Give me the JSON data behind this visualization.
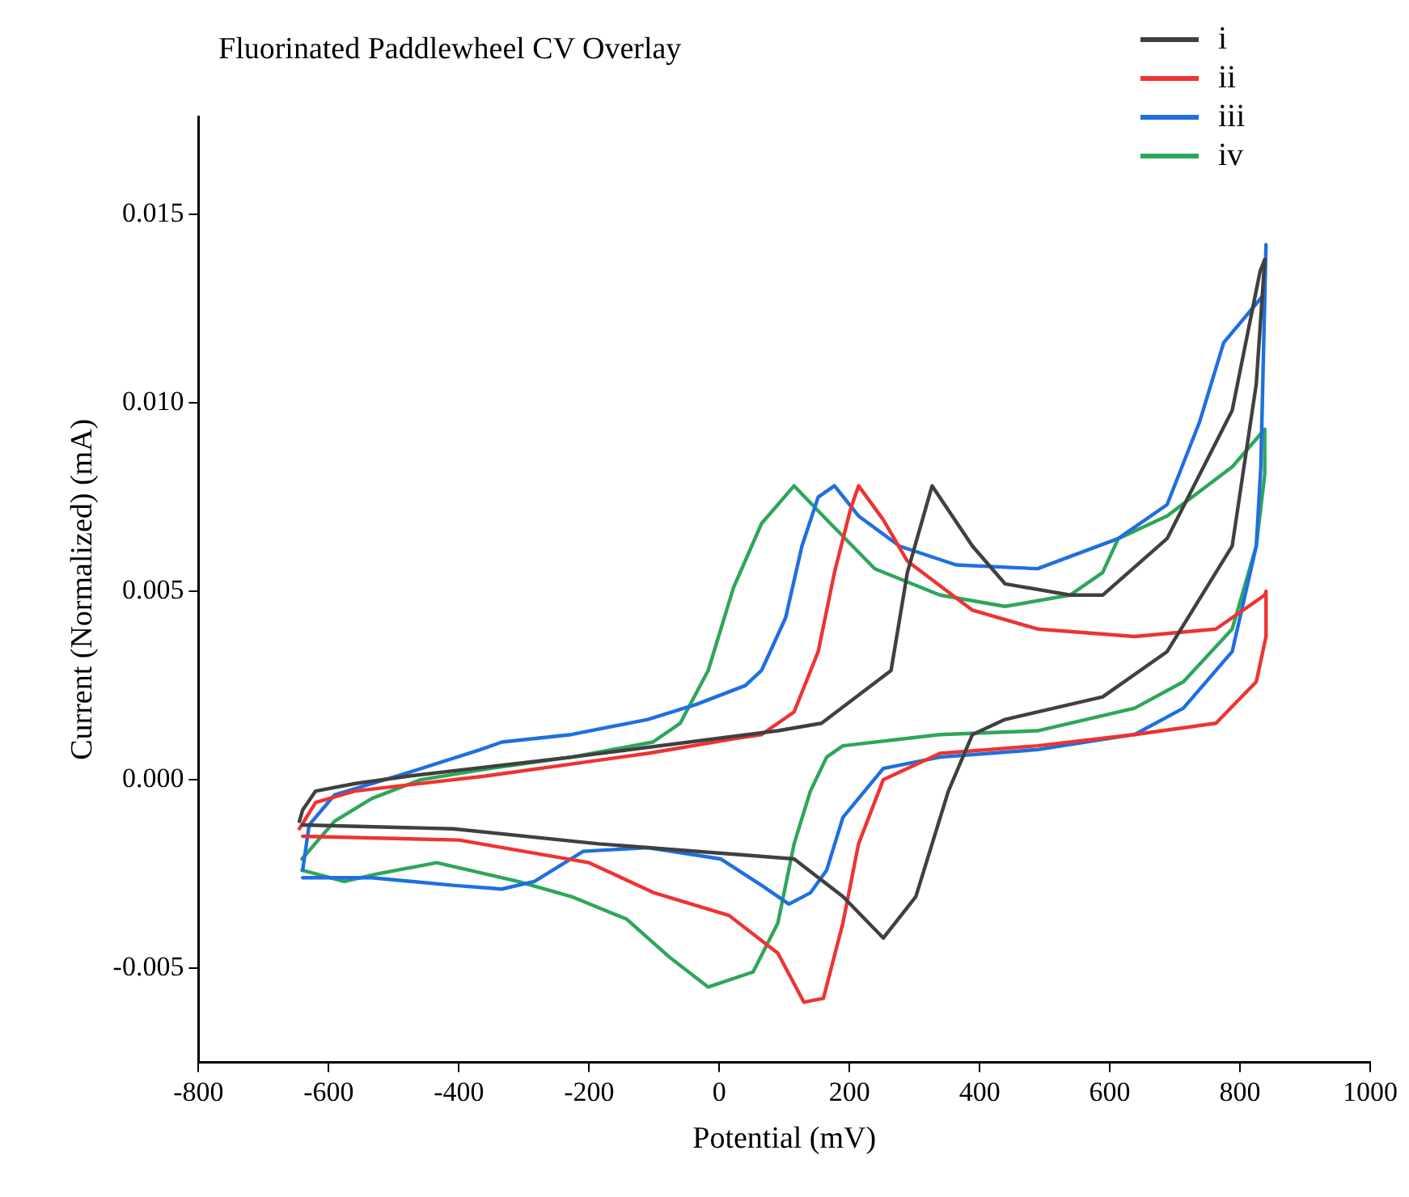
{
  "chart_data": {
    "type": "line",
    "title": "Fluorinated Paddlewheel CV Overlay",
    "xlabel": "Potential (mV)",
    "ylabel": "Current (Normalized) (mA)",
    "xlim": [
      -800,
      1000
    ],
    "xticks": [
      -800,
      -600,
      -400,
      -200,
      0,
      200,
      400,
      600,
      800,
      1000
    ],
    "ylim": [
      -0.0075,
      0.0176
    ],
    "yticks": [
      -0.005,
      {
        "value": 0,
        "label": "0.000"
      },
      0.005,
      {
        "value": 0.01,
        "label": "0.010"
      },
      0.015
    ],
    "grid": false,
    "legend": "top right",
    "marker": "none",
    "line_style": "solid",
    "series": [
      {
        "name": "i",
        "color": "#404040",
        "x": [
          -645,
          -640,
          -620,
          -559,
          -476,
          -227,
          90,
          157,
          264,
          289,
          327,
          389,
          439,
          539,
          589,
          688,
          788,
          831,
          838,
          825,
          788,
          688,
          589,
          439,
          389,
          352,
          302,
          252,
          190,
          115,
          40,
          -185,
          -409,
          -640
        ],
        "values": [
          -0.0011,
          -0.0008,
          -0.0003,
          -0.0001,
          0.0001,
          0.0006,
          0.0013,
          0.0015,
          0.0029,
          0.0055,
          0.0078,
          0.0062,
          0.0052,
          0.0049,
          0.0049,
          0.0064,
          0.0098,
          0.0135,
          0.0138,
          0.0105,
          0.0062,
          0.0034,
          0.0022,
          0.0016,
          0.0012,
          -0.0003,
          -0.0031,
          -0.0042,
          -0.0031,
          -0.0021,
          -0.002,
          -0.0017,
          -0.0013,
          -0.0012
        ]
      },
      {
        "name": "ii",
        "color": "#ee3333",
        "x": [
          -645,
          -620,
          -560,
          -359,
          -110,
          27,
          65,
          115,
          152,
          177,
          202,
          214,
          252,
          289,
          389,
          489,
          638,
          763,
          838,
          840,
          840,
          825,
          763,
          638,
          489,
          339,
          252,
          214,
          190,
          160,
          130,
          90,
          15,
          -100,
          -200,
          -400,
          -640
        ],
        "values": [
          -0.0013,
          -0.0006,
          -0.0003,
          0.0001,
          0.0007,
          0.0011,
          0.0012,
          0.0018,
          0.0034,
          0.0055,
          0.0072,
          0.0078,
          0.0069,
          0.0058,
          0.0045,
          0.004,
          0.0038,
          0.004,
          0.0049,
          0.005,
          0.0038,
          0.0026,
          0.0015,
          0.0012,
          0.0009,
          0.0007,
          0,
          -0.0017,
          -0.0038,
          -0.0058,
          -0.0059,
          -0.0046,
          -0.0036,
          -0.003,
          -0.0022,
          -0.0016,
          -0.0015
        ]
      },
      {
        "name": "iii",
        "color": "#1f6fe0",
        "x": [
          -640,
          -630,
          -591,
          -476,
          -367,
          -334,
          -227,
          -110,
          -35,
          40,
          65,
          102,
          127,
          152,
          177,
          214,
          277,
          364,
          489,
          613,
          688,
          738,
          775,
          838,
          840,
          832,
          825,
          788,
          713,
          638,
          489,
          339,
          252,
          190,
          165,
          140,
          107,
          65,
          2,
          -110,
          -209,
          -284,
          -334,
          -409,
          -534,
          -640
        ],
        "values": [
          -0.0024,
          -0.0012,
          -0.0004,
          0.0002,
          0.0008,
          0.001,
          0.0012,
          0.0016,
          0.002,
          0.0025,
          0.0029,
          0.0043,
          0.0062,
          0.0075,
          0.0078,
          0.007,
          0.0062,
          0.0057,
          0.0056,
          0.0064,
          0.0073,
          0.0095,
          0.0116,
          0.0129,
          0.0142,
          0.0083,
          0.0062,
          0.0034,
          0.0019,
          0.0012,
          0.0008,
          0.0006,
          0.0003,
          -0.001,
          -0.0024,
          -0.003,
          -0.0033,
          -0.0028,
          -0.0021,
          -0.0018,
          -0.0019,
          -0.0027,
          -0.0029,
          -0.0028,
          -0.0026,
          -0.0026
        ]
      },
      {
        "name": "iv",
        "color": "#2ea65a",
        "x": [
          -641,
          -591,
          -534,
          -459,
          -352,
          -227,
          -102,
          -60,
          -17,
          22,
          65,
          115,
          165,
          239,
          339,
          439,
          539,
          589,
          613,
          688,
          788,
          838,
          838,
          825,
          788,
          713,
          638,
          489,
          339,
          190,
          165,
          140,
          115,
          90,
          52,
          -17,
          -77,
          -142,
          -227,
          -309,
          -434,
          -526,
          -576,
          -641
        ],
        "values": [
          -0.0021,
          -0.0011,
          -0.0005,
          0,
          0.0003,
          0.0006,
          0.001,
          0.0015,
          0.0029,
          0.0051,
          0.0068,
          0.0078,
          0.0069,
          0.0056,
          0.0049,
          0.0046,
          0.0049,
          0.0055,
          0.0064,
          0.007,
          0.0083,
          0.0093,
          0.0081,
          0.0062,
          0.004,
          0.0026,
          0.0019,
          0.0013,
          0.0012,
          0.0009,
          0.0006,
          -0.0003,
          -0.0017,
          -0.0038,
          -0.0051,
          -0.0055,
          -0.0047,
          -0.0037,
          -0.0031,
          -0.0027,
          -0.0022,
          -0.0025,
          -0.0027,
          -0.0024
        ]
      }
    ]
  }
}
